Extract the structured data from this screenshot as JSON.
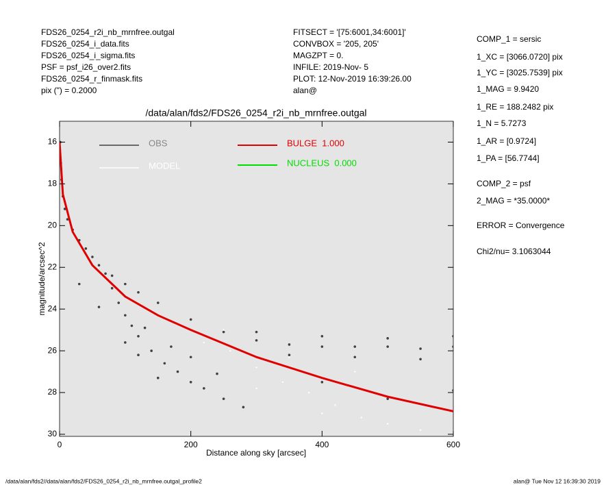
{
  "header": {
    "left": [
      "FDS26_0254_r2i_nb_mrnfree.outgal",
      "FDS26_0254_i_data.fits",
      "FDS26_0254_i_sigma.fits",
      "PSF    = psf_i26_over2.fits",
      "FDS26_0254_r_finmask.fits",
      "pix (\") =  0.2000"
    ],
    "center": [
      "FITSECT = '[75:6001,34:6001]'",
      "CONVBOX = '205, 205'",
      "MAGZPT  =              0.",
      "INFILE: 2019-Nov- 5",
      "PLOT: 12-Nov-2019 16:39:26.00",
      "alan@"
    ]
  },
  "params": [
    "COMP_1  = sersic",
    "1_XC    = [3066.0720] pix",
    "1_YC    = [3025.7539] pix",
    "1_MAG   = 9.9420",
    "1_RE    = 188.2482 pix",
    "1_N     = 5.7273",
    "1_AR    = [0.9724]",
    "1_PA    = [56.7744]",
    "COMP_2  = psf",
    "2_MAG   = *35.0000*",
    "ERROR   = Convergence",
    "Chi2/nu=      3.1063044"
  ],
  "footer": {
    "left": "/data/alan/fds2//data/alan/fds2/FDS26_0254_r2i_nb_mrnfree.outgal_profile2",
    "right": "alan@  Tue Nov 12 16:39:30 2019"
  },
  "chart_data": {
    "type": "scatter",
    "title": "/data/alan/fds2/FDS26_0254_r2i_nb_mrnfree.outgal",
    "x_label": "Distance along sky [arcsec]",
    "y_label": "magnitude/arcsec^2",
    "xlim": [
      0,
      600
    ],
    "ylim": [
      15,
      30.1
    ],
    "y_inverted": true,
    "xticks": [
      0,
      200,
      400,
      600
    ],
    "yticks": [
      16,
      18,
      20,
      22,
      24,
      26,
      28,
      30
    ],
    "background": "#e5e5e5",
    "series": [
      {
        "name": "OBS",
        "color": "#404040",
        "style": "points",
        "x": [
          1,
          2,
          3,
          5,
          8,
          12,
          20,
          30,
          40,
          50,
          60,
          70,
          80,
          90,
          100,
          110,
          120,
          140,
          160,
          180,
          200,
          220,
          250,
          280,
          120,
          150,
          100,
          130,
          170,
          200,
          240,
          80,
          100,
          120,
          150,
          200,
          250,
          300,
          350,
          400,
          450,
          500,
          550,
          600,
          300,
          400,
          500,
          600,
          350,
          450,
          550,
          30,
          60,
          400,
          500,
          600
        ],
        "values": [
          16,
          17,
          17.8,
          18.6,
          19.2,
          19.7,
          20.2,
          20.7,
          21.1,
          21.5,
          21.9,
          22.3,
          23,
          23.7,
          24.3,
          24.8,
          25.3,
          26,
          26.6,
          27,
          27.5,
          27.8,
          28.3,
          28.7,
          26.2,
          27.3,
          25.6,
          24.9,
          25.8,
          26.3,
          27.1,
          22.4,
          22.8,
          23.2,
          23.7,
          24.5,
          25.1,
          25.5,
          25.7,
          25.8,
          25.8,
          25.8,
          25.9,
          25.8,
          25.1,
          25.3,
          25.4,
          25.3,
          26.2,
          26.3,
          26.4,
          22.8,
          23.9,
          27.5,
          28.3,
          27.9
        ]
      },
      {
        "name": "MODEL",
        "color": "#ffffff",
        "style": "points",
        "x": [
          220,
          260,
          300,
          340,
          380,
          420,
          460,
          500,
          550,
          600,
          300,
          400,
          250,
          350,
          450
        ],
        "values": [
          25.6,
          26,
          26.8,
          27.5,
          28,
          28.6,
          29.2,
          29.5,
          29.8,
          30,
          27.8,
          29,
          25,
          26.3,
          27
        ]
      },
      {
        "name": "BULGE  1.000",
        "color": "#e00000",
        "style": "line",
        "x": [
          0,
          5,
          20,
          50,
          100,
          150,
          200,
          300,
          400,
          500,
          600
        ],
        "values": [
          16,
          18.5,
          20.3,
          21.9,
          23.4,
          24.3,
          25,
          26.3,
          27.3,
          28.2,
          28.9
        ]
      },
      {
        "name": "NUCLEUS  0.000",
        "color": "#00dd00",
        "style": "line",
        "x": [],
        "values": []
      }
    ]
  }
}
